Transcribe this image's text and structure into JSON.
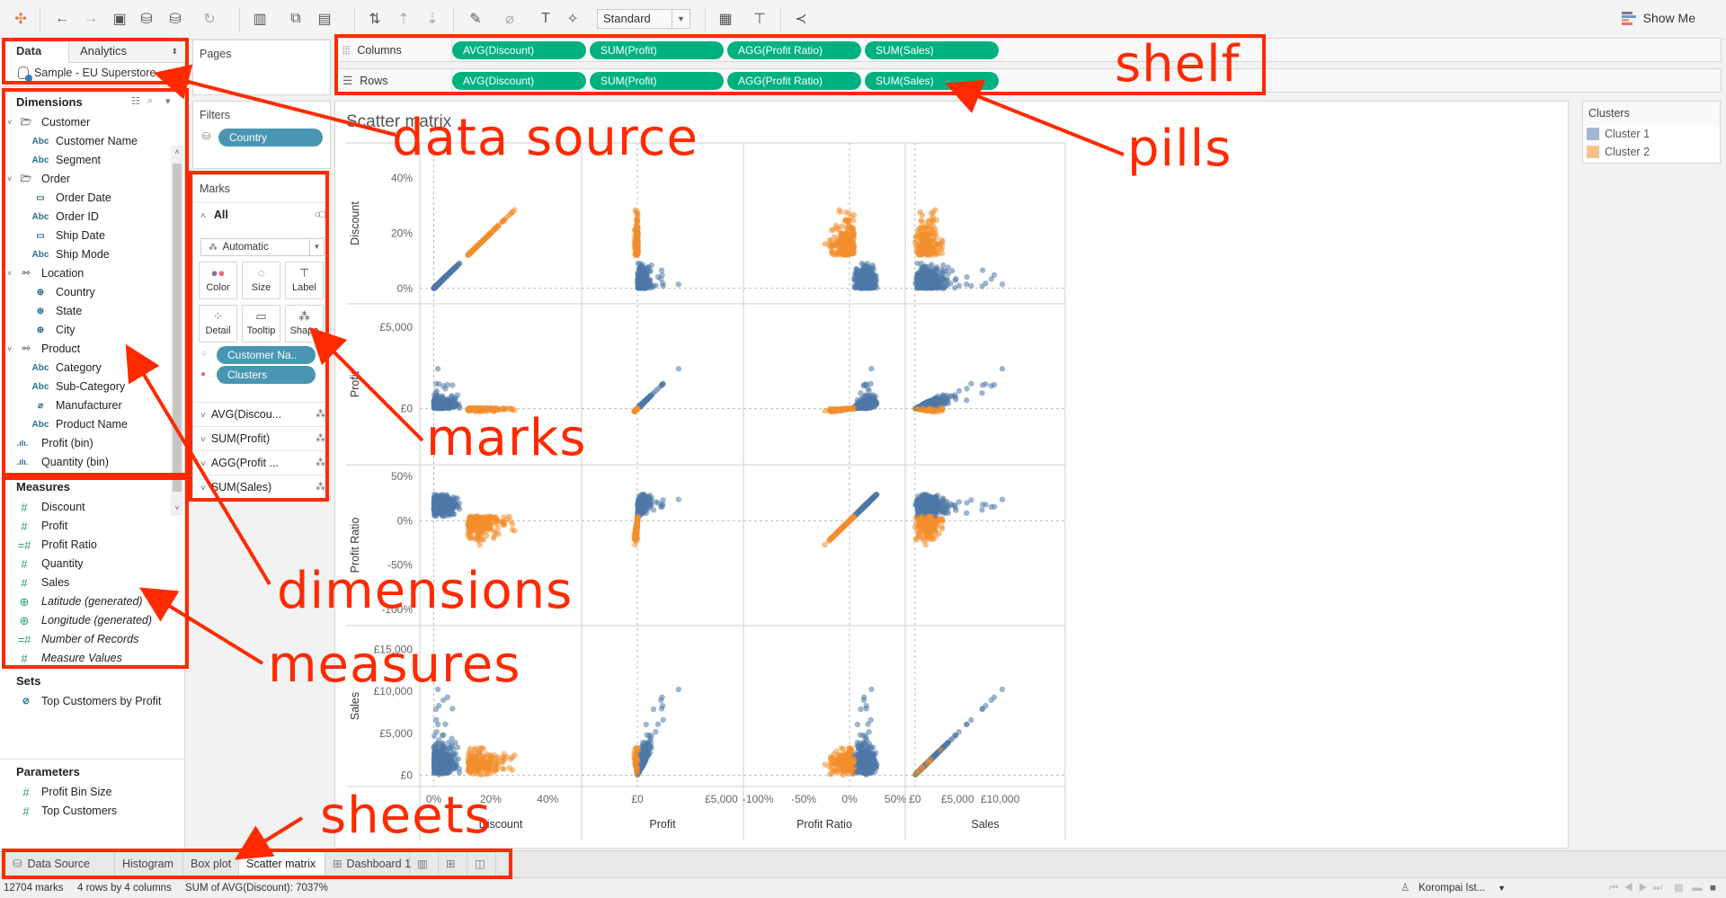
{
  "toolbar": {
    "mark_type_select": "Standard",
    "show_me_label": "Show Me",
    "icons": [
      "tableau-logo-icon",
      "back-icon",
      "forward-icon",
      "save-icon",
      "new-datasource-icon",
      "pause-updates-icon",
      "refresh-icon",
      "new-worksheet-icon",
      "duplicate-sheet-icon",
      "clear-sheet-icon",
      "swap-icon",
      "sort-ascending-icon",
      "sort-descending-icon",
      "highlight-icon",
      "group-icon",
      "label-icon",
      "pin-icon",
      "fit-icon",
      "presentation-icon",
      "share-icon"
    ]
  },
  "data_pane": {
    "tabs": [
      {
        "label": "Data",
        "active": true
      },
      {
        "label": "Analytics",
        "active": false
      }
    ],
    "data_source": "Sample - EU Superstore",
    "dimensions": {
      "title": "Dimensions",
      "items": [
        {
          "label": "Customer",
          "type": "folder",
          "level": 0
        },
        {
          "label": "Customer Name",
          "type": "abc",
          "level": 1
        },
        {
          "label": "Segment",
          "type": "abc",
          "level": 1
        },
        {
          "label": "Order",
          "type": "folder",
          "level": 0
        },
        {
          "label": "Order Date",
          "type": "date",
          "level": 1
        },
        {
          "label": "Order ID",
          "type": "abc",
          "level": 1
        },
        {
          "label": "Ship Date",
          "type": "date",
          "level": 1
        },
        {
          "label": "Ship Mode",
          "type": "abc",
          "level": 1
        },
        {
          "label": "Location",
          "type": "hierarchy",
          "level": 0
        },
        {
          "label": "Country",
          "type": "geo",
          "level": 1
        },
        {
          "label": "State",
          "type": "geo",
          "level": 1
        },
        {
          "label": "City",
          "type": "geo",
          "level": 1
        },
        {
          "label": "Product",
          "type": "hierarchy",
          "level": 0
        },
        {
          "label": "Category",
          "type": "abc",
          "level": 1
        },
        {
          "label": "Sub-Category",
          "type": "abc",
          "level": 1
        },
        {
          "label": "Manufacturer",
          "type": "group",
          "level": 1
        },
        {
          "label": "Product Name",
          "type": "abc",
          "level": 1
        },
        {
          "label": "Profit (bin)",
          "type": "bin",
          "level": 0
        },
        {
          "label": "Quantity (bin)",
          "type": "bin",
          "level": 0
        }
      ]
    },
    "measures": {
      "title": "Measures",
      "items": [
        {
          "label": "Discount",
          "type": "num",
          "italic": false
        },
        {
          "label": "Profit",
          "type": "num",
          "italic": false
        },
        {
          "label": "Profit Ratio",
          "type": "calc",
          "italic": false
        },
        {
          "label": "Quantity",
          "type": "num",
          "italic": false
        },
        {
          "label": "Sales",
          "type": "num",
          "italic": false
        },
        {
          "label": "Latitude (generated)",
          "type": "geo",
          "italic": true
        },
        {
          "label": "Longitude (generated)",
          "type": "geo",
          "italic": true
        },
        {
          "label": "Number of Records",
          "type": "calc",
          "italic": true
        },
        {
          "label": "Measure Values",
          "type": "num",
          "italic": true
        }
      ]
    },
    "sets": {
      "title": "Sets",
      "items": [
        {
          "label": "Top Customers by Profit"
        }
      ]
    },
    "parameters": {
      "title": "Parameters",
      "items": [
        {
          "label": "Profit Bin Size"
        },
        {
          "label": "Top Customers"
        }
      ]
    }
  },
  "cards": {
    "pages": {
      "title": "Pages"
    },
    "filters": {
      "title": "Filters",
      "pills": [
        "Country"
      ]
    },
    "marks": {
      "title": "Marks",
      "all_label": "All",
      "mark_type": "Automatic",
      "buttons": [
        "Color",
        "Size",
        "Label",
        "Detail",
        "Tooltip",
        "Shape"
      ],
      "pills": [
        {
          "label": "Customer Na..",
          "encoding": "detail"
        },
        {
          "label": "Clusters",
          "encoding": "color"
        }
      ],
      "measure_cards": [
        "AVG(Discou...",
        "SUM(Profit)",
        "AGG(Profit ...",
        "SUM(Sales)"
      ]
    }
  },
  "shelves": {
    "columns": {
      "label": "Columns",
      "pills": [
        "AVG(Discount)",
        "SUM(Profit)",
        "AGG(Profit Ratio)",
        "SUM(Sales)"
      ]
    },
    "rows": {
      "label": "Rows",
      "pills": [
        "AVG(Discount)",
        "SUM(Profit)",
        "AGG(Profit Ratio)",
        "SUM(Sales)"
      ]
    }
  },
  "view": {
    "title": "Scatter matrix"
  },
  "legend": {
    "title": "Clusters",
    "items": [
      {
        "label": "Cluster 1",
        "color": "#a3b8cf"
      },
      {
        "label": "Cluster 2",
        "color": "#f6c38f"
      }
    ]
  },
  "chart_data": {
    "type": "scatter",
    "title": "Scatter matrix",
    "variables": [
      "Discount",
      "Profit",
      "Profit Ratio",
      "Sales"
    ],
    "series": [
      {
        "name": "Cluster 1",
        "color": "#4e79a7"
      },
      {
        "name": "Cluster 2",
        "color": "#f28e2b"
      }
    ],
    "axes": {
      "Discount": {
        "ticks": [
          "0%",
          "20%",
          "40%"
        ],
        "range": [
          0,
          0.5
        ]
      },
      "Profit": {
        "ticks": [
          "£0",
          "£5,000"
        ],
        "range": [
          -2500,
          5000
        ]
      },
      "Profit Ratio": {
        "ticks": [
          "-100%",
          "-50%",
          "0%",
          "50%"
        ],
        "range": [
          -1.0,
          0.5
        ]
      },
      "Sales": {
        "ticks": [
          "£0",
          "£5,000",
          "£10,000",
          "£15,000"
        ],
        "range": [
          0,
          16500
        ]
      }
    },
    "row_axis_labels": {
      "Discount": [
        "40%",
        "20%",
        "0%"
      ],
      "Profit": [
        "£5,000",
        "£0"
      ],
      "Profit Ratio": [
        "50%",
        "0%",
        "-50%",
        "-100%"
      ],
      "Sales": [
        "£15,000",
        "£10,000",
        "£5,000",
        "£0"
      ]
    },
    "column_axis_labels": {
      "Discount": [
        "0%",
        "20%",
        "40%"
      ],
      "Profit": [
        "£0",
        "£5,000"
      ],
      "Profit Ratio": [
        "-100%",
        "-50%",
        "0%",
        "50%"
      ],
      "Sales": [
        "£0",
        "£5,000",
        "£10,000"
      ]
    },
    "grid": "4x4 matrix with dashed zero lines",
    "legend_position": "right"
  },
  "sheet_tabs": [
    {
      "label": "Data Source",
      "icon": "datasource-icon",
      "active": false
    },
    {
      "label": "Histogram",
      "active": false
    },
    {
      "label": "Box plot",
      "active": false
    },
    {
      "label": "Scatter matrix",
      "active": true
    },
    {
      "label": "Dashboard 1",
      "icon": "dashboard-icon",
      "active": false
    }
  ],
  "status_bar": {
    "marks": "12704 marks",
    "dims": "4 rows by 4 columns",
    "sum": "SUM of AVG(Discount): 7037%",
    "user": "Korompai Ist..."
  },
  "annotations": {
    "data_source": "data source",
    "shelf": "shelf",
    "pills": "pills",
    "marks": "marks",
    "dimensions": "dimensions",
    "measures": "measures",
    "sheets": "sheets",
    "color": "#ff2a00"
  }
}
